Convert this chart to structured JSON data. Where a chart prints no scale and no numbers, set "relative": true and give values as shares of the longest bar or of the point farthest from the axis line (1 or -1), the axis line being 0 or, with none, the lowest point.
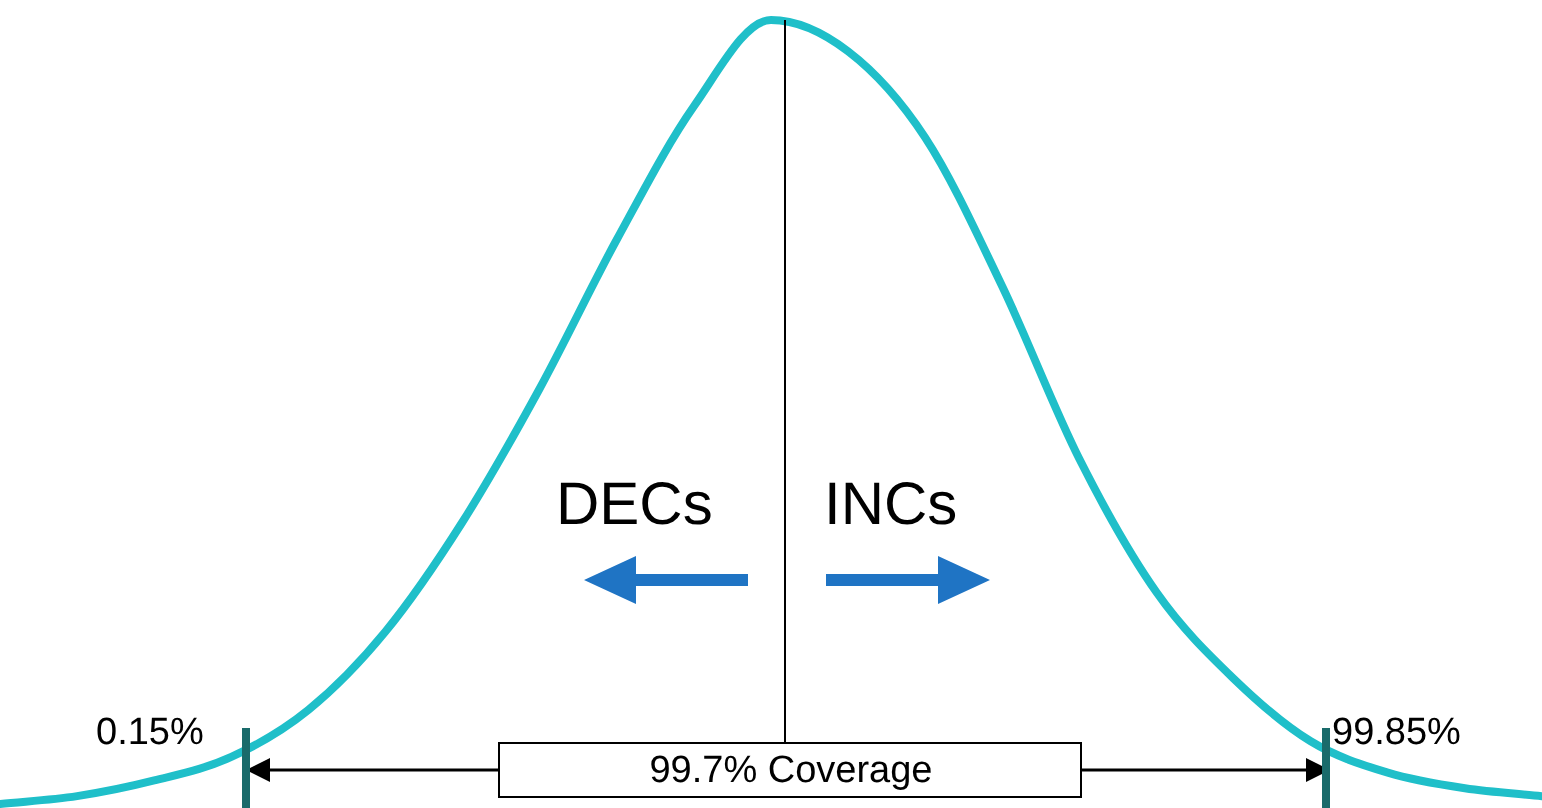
{
  "chart_data": {
    "type": "line",
    "relative": true,
    "categories": [
      null,
      null,
      null,
      null,
      null,
      null,
      null,
      null,
      null,
      null,
      null,
      null,
      null,
      null,
      null,
      null,
      null,
      null,
      null,
      null,
      null
    ],
    "series": [
      {
        "color": "#1fbfc9",
        "values": [
          0,
          0.01,
          0.03,
          0.06,
          0.12,
          0.22,
          0.36,
          0.53,
          0.72,
          0.89,
          1,
          0.96,
          0.85,
          0.66,
          0.44,
          0.27,
          0.16,
          0.08,
          0.04,
          0.02,
          0.01
        ]
      }
    ],
    "annotations": [
      "DECs",
      "INCs",
      "0.15%",
      "99.85%",
      "99.7% Coverage"
    ],
    "marker": "none",
    "legend": false,
    "tick_labels": false
  }
}
